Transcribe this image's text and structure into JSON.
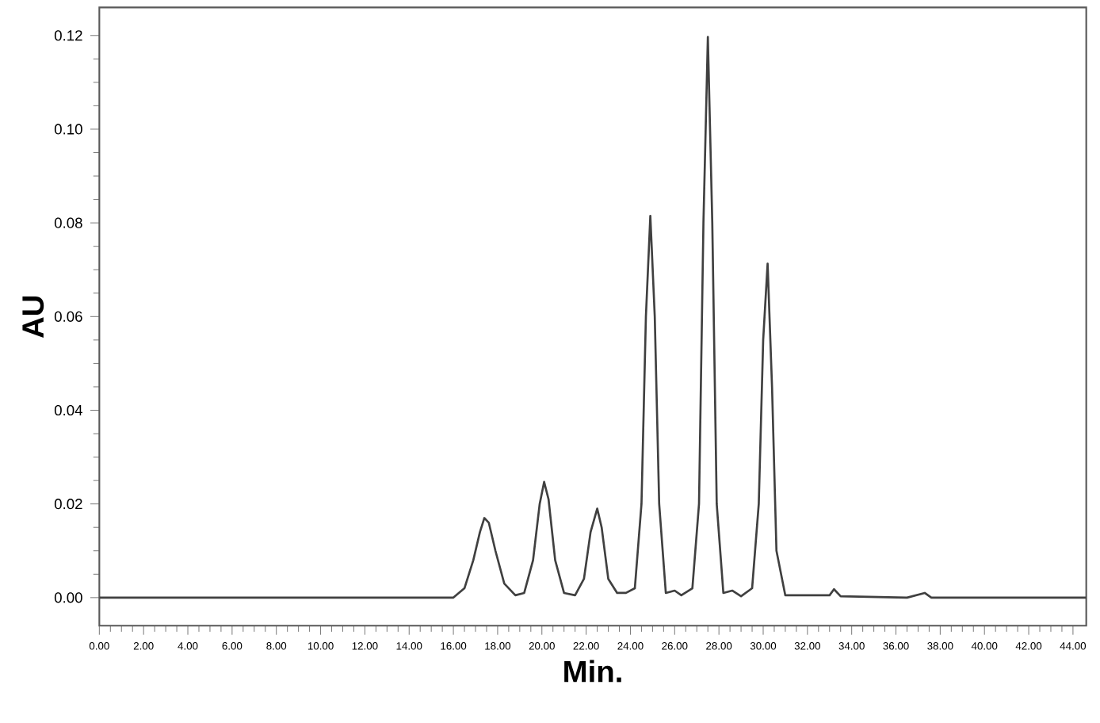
{
  "chart_data": {
    "type": "line",
    "xlabel": "Min.",
    "ylabel": "AU",
    "x": [
      0,
      16.0,
      16.5,
      16.9,
      17.2,
      17.4,
      17.6,
      17.9,
      18.3,
      18.8,
      19.2,
      19.6,
      19.9,
      20.1,
      20.3,
      20.6,
      21.0,
      21.5,
      21.9,
      22.2,
      22.5,
      22.7,
      23.0,
      23.4,
      23.8,
      24.2,
      24.5,
      24.7,
      24.9,
      25.1,
      25.3,
      25.6,
      26.0,
      26.3,
      26.8,
      27.1,
      27.3,
      27.5,
      27.7,
      27.9,
      28.2,
      28.6,
      29.0,
      29.5,
      29.8,
      30.0,
      30.2,
      30.4,
      30.6,
      31.0,
      33.0,
      33.2,
      33.5,
      36.5,
      37.3,
      37.6,
      44.6
    ],
    "series": [
      {
        "color": "#404040",
        "values": [
          0,
          0,
          0.002,
          0.008,
          0.014,
          0.017,
          0.016,
          0.01,
          0.003,
          0.0005,
          0.001,
          0.008,
          0.02,
          0.0247,
          0.021,
          0.008,
          0.001,
          0.0005,
          0.004,
          0.014,
          0.019,
          0.015,
          0.004,
          0.001,
          0.001,
          0.002,
          0.02,
          0.06,
          0.0815,
          0.06,
          0.02,
          0.001,
          0.0015,
          0.0005,
          0.002,
          0.02,
          0.08,
          0.1197,
          0.08,
          0.02,
          0.001,
          0.0015,
          0.0003,
          0.002,
          0.02,
          0.055,
          0.0713,
          0.045,
          0.01,
          0.0005,
          0.0005,
          0.0018,
          0.0003,
          0,
          0.001,
          0,
          0
        ]
      }
    ],
    "xlim": [
      0,
      44.6
    ],
    "ylim": [
      -0.006,
      0.126
    ],
    "xticks": [
      {
        "value": 0,
        "label": "0.00"
      },
      {
        "value": 2,
        "label": "2.00"
      },
      {
        "value": 4,
        "label": "4.00"
      },
      {
        "value": 6,
        "label": "6.00"
      },
      {
        "value": 8,
        "label": "8.00"
      },
      {
        "value": 10,
        "label": "10.00"
      },
      {
        "value": 12,
        "label": "12.00"
      },
      {
        "value": 14,
        "label": "14.00"
      },
      {
        "value": 16,
        "label": "16.00"
      },
      {
        "value": 18,
        "label": "18.00"
      },
      {
        "value": 20,
        "label": "20.00"
      },
      {
        "value": 22,
        "label": "22.00"
      },
      {
        "value": 24,
        "label": "24.00"
      },
      {
        "value": 26,
        "label": "26.00"
      },
      {
        "value": 28,
        "label": "28.00"
      },
      {
        "value": 30,
        "label": "30.00"
      },
      {
        "value": 32,
        "label": "32.00"
      },
      {
        "value": 34,
        "label": "34.00"
      },
      {
        "value": 36,
        "label": "36.00"
      },
      {
        "value": 38,
        "label": "38.00"
      },
      {
        "value": 40,
        "label": "40.00"
      },
      {
        "value": 42,
        "label": "42.00"
      },
      {
        "value": 44,
        "label": "44.00"
      }
    ],
    "yticks": [
      {
        "value": 0,
        "label": "0.00"
      },
      {
        "value": 0.02,
        "label": "0.02"
      },
      {
        "value": 0.04,
        "label": "0.04"
      },
      {
        "value": 0.06,
        "label": "0.06"
      },
      {
        "value": 0.08,
        "label": "0.08"
      },
      {
        "value": 0.1,
        "label": "0.10"
      },
      {
        "value": 0.12,
        "label": "0.12"
      }
    ],
    "marker": "none",
    "line_style": "solid"
  }
}
